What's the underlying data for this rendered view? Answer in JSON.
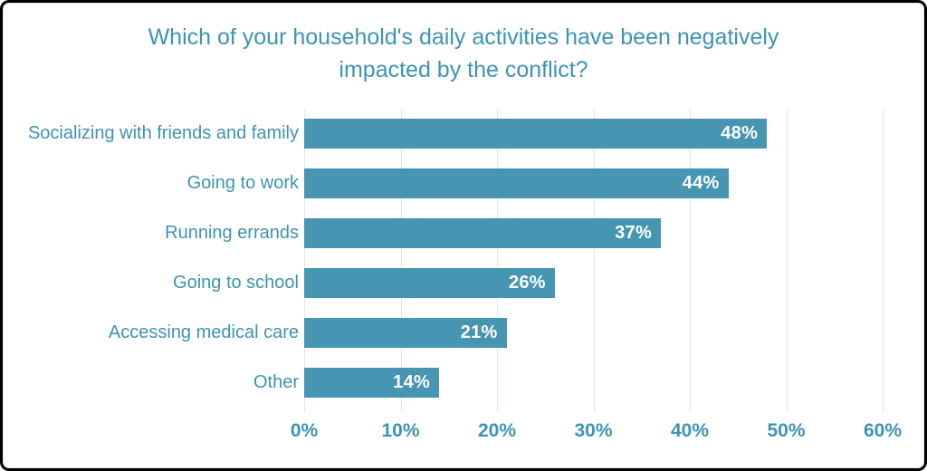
{
  "chart_data": {
    "type": "bar",
    "orientation": "horizontal",
    "title": "Which of your household's daily activities have been negatively impacted by the conflict?",
    "categories": [
      "Socializing with friends and family",
      "Going to work",
      "Running errands",
      "Going to school",
      "Accessing medical care",
      "Other"
    ],
    "values": [
      48,
      44,
      37,
      26,
      21,
      14
    ],
    "data_labels": [
      "48%",
      "44%",
      "37%",
      "26%",
      "21%",
      "14%"
    ],
    "value_suffix": "%",
    "xlabel": "",
    "ylabel": "",
    "xlim": [
      0,
      60
    ],
    "x_tick_values": [
      0,
      10,
      20,
      30,
      40,
      50,
      60
    ],
    "x_tick_labels": [
      "0%",
      "10%",
      "20%",
      "30%",
      "40%",
      "50%",
      "60%"
    ],
    "grid": "vertical",
    "legend": "none",
    "colors": {
      "bar_fill": "#4695b2",
      "title_text": "#3e93b5",
      "category_text": "#3e93b5",
      "axis_text": "#3e93b5",
      "data_label_text": "#ffffff",
      "gridline": "#d9eaf1",
      "background": "#ffffff",
      "frame_border": "#000000"
    }
  }
}
